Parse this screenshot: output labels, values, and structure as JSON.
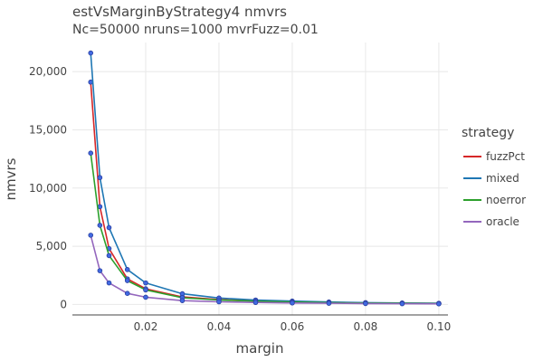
{
  "chart_data": {
    "type": "line",
    "title": "estVsMarginByStrategy4 nmvrs",
    "subtitle": "Nc=50000 nruns=1000 mvrFuzz=0.01",
    "xlabel": "margin",
    "ylabel": "nmvrs",
    "xlim": [
      0.0,
      0.1025
    ],
    "ylim": [
      -900,
      22500
    ],
    "x_ticks": [
      0.02,
      0.04,
      0.06,
      0.08,
      0.1
    ],
    "x_tick_labels": [
      "0.02",
      "0.04",
      "0.06",
      "0.08",
      "0.10"
    ],
    "y_ticks": [
      0,
      5000,
      10000,
      15000,
      20000
    ],
    "y_tick_labels": [
      "0",
      "5,000",
      "10,000",
      "15,000",
      "20,000"
    ],
    "grid": true,
    "legend_title": "strategy",
    "legend_position": "right",
    "marker_color": "#4169e1",
    "series": [
      {
        "name": "fuzzPct",
        "color": "#d62728",
        "x": [
          0.005,
          0.0075,
          0.01,
          0.015,
          0.02,
          0.03,
          0.04,
          0.05,
          0.06,
          0.07,
          0.08,
          0.09,
          0.1
        ],
        "y": [
          19100,
          8400,
          4800,
          2200,
          1350,
          650,
          420,
          300,
          230,
          170,
          130,
          105,
          85
        ]
      },
      {
        "name": "mixed",
        "color": "#1f77b4",
        "x": [
          0.005,
          0.0075,
          0.01,
          0.015,
          0.02,
          0.03,
          0.04,
          0.05,
          0.06,
          0.07,
          0.08,
          0.09,
          0.1
        ],
        "y": [
          21600,
          10900,
          6600,
          3000,
          1850,
          920,
          550,
          380,
          290,
          210,
          160,
          125,
          100
        ]
      },
      {
        "name": "noerror",
        "color": "#2ca02c",
        "x": [
          0.005,
          0.0075,
          0.01,
          0.015,
          0.02,
          0.03,
          0.04,
          0.05,
          0.06,
          0.07,
          0.08,
          0.09,
          0.1
        ],
        "y": [
          13000,
          6800,
          4200,
          2050,
          1250,
          580,
          380,
          280,
          210,
          160,
          120,
          100,
          80
        ]
      },
      {
        "name": "oracle",
        "color": "#9467bd",
        "x": [
          0.005,
          0.0075,
          0.01,
          0.015,
          0.02,
          0.03,
          0.04,
          0.05,
          0.06,
          0.07,
          0.08,
          0.09,
          0.1
        ],
        "y": [
          5950,
          2900,
          1850,
          950,
          620,
          330,
          230,
          170,
          130,
          100,
          80,
          65,
          55
        ]
      }
    ]
  }
}
